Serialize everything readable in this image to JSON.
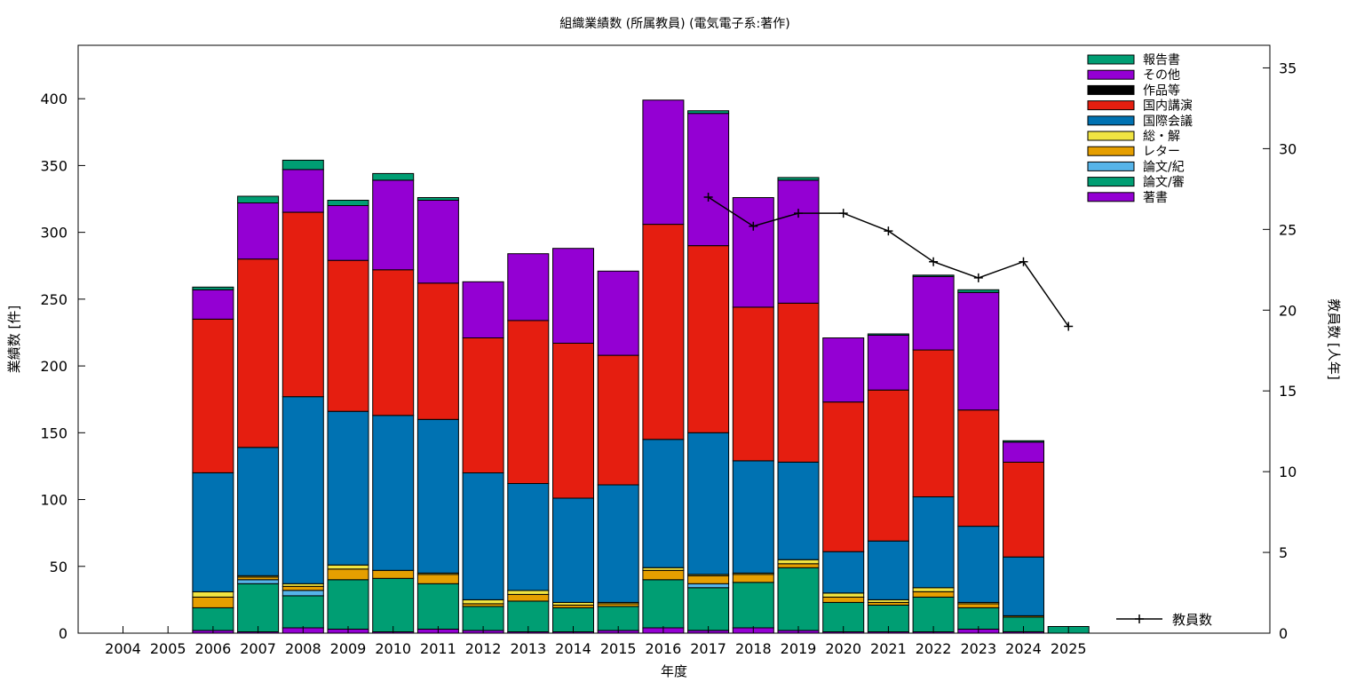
{
  "chart_data": {
    "type": "bar",
    "stacked": true,
    "title": "組織業績数 (所属教員) (電気電子系:著作)",
    "xlabel": "年度",
    "ylabel": "業績数 [件]",
    "y2label": "教員数 [人年]",
    "categories": [
      "2004",
      "2005",
      "2006",
      "2007",
      "2008",
      "2009",
      "2010",
      "2011",
      "2012",
      "2013",
      "2014",
      "2015",
      "2016",
      "2017",
      "2018",
      "2019",
      "2020",
      "2021",
      "2022",
      "2023",
      "2024",
      "2025"
    ],
    "ylim": [
      0,
      440
    ],
    "yticks": [
      0,
      50,
      100,
      150,
      200,
      250,
      300,
      350,
      400
    ],
    "y2lim": [
      0,
      36.4
    ],
    "y2ticks": [
      0,
      5,
      10,
      15,
      20,
      25,
      30,
      35
    ],
    "grid": false,
    "legend_position": "top-right",
    "series": [
      {
        "name": "著書",
        "color": "#9400d3",
        "values": [
          0,
          0,
          2,
          1,
          4,
          3,
          1,
          3,
          2,
          1,
          1,
          2,
          4,
          2,
          4,
          2,
          1,
          1,
          1,
          3,
          1,
          0
        ]
      },
      {
        "name": "論文/審",
        "color": "#009e73",
        "values": [
          0,
          0,
          17,
          36,
          24,
          37,
          40,
          34,
          18,
          23,
          18,
          18,
          36,
          32,
          34,
          47,
          22,
          20,
          26,
          16,
          11,
          5
        ]
      },
      {
        "name": "論文/紀",
        "color": "#56b4e9",
        "values": [
          0,
          0,
          0,
          3,
          4,
          0,
          0,
          0,
          0,
          0,
          0,
          0,
          0,
          3,
          0,
          0,
          0,
          0,
          0,
          0,
          0,
          0
        ]
      },
      {
        "name": "レター",
        "color": "#e69f00",
        "values": [
          0,
          0,
          8,
          2,
          3,
          8,
          6,
          7,
          2,
          5,
          2,
          2,
          7,
          6,
          6,
          3,
          4,
          2,
          4,
          3,
          1,
          0
        ]
      },
      {
        "name": "総・解",
        "color": "#f0e442",
        "values": [
          0,
          0,
          4,
          1,
          2,
          3,
          0,
          1,
          3,
          3,
          2,
          1,
          2,
          1,
          1,
          3,
          3,
          2,
          3,
          1,
          0,
          0
        ]
      },
      {
        "name": "国際会議",
        "color": "#0072b2",
        "values": [
          0,
          0,
          89,
          96,
          140,
          115,
          116,
          115,
          95,
          80,
          78,
          88,
          96,
          106,
          84,
          73,
          31,
          44,
          68,
          57,
          44,
          0
        ]
      },
      {
        "name": "国内講演",
        "color": "#e51e10",
        "values": [
          0,
          0,
          115,
          141,
          138,
          113,
          109,
          102,
          101,
          122,
          116,
          97,
          161,
          140,
          115,
          119,
          112,
          113,
          110,
          87,
          71,
          0
        ]
      },
      {
        "name": "作品等",
        "color": "#000000",
        "values": [
          0,
          0,
          0,
          0,
          0,
          0,
          0,
          0,
          0,
          0,
          0,
          0,
          0,
          0,
          0,
          0,
          0,
          0,
          0,
          0,
          0,
          0
        ]
      },
      {
        "name": "その他",
        "color": "#9400d3",
        "values": [
          0,
          0,
          22,
          42,
          32,
          41,
          67,
          62,
          42,
          50,
          71,
          63,
          93,
          99,
          82,
          92,
          48,
          41,
          55,
          88,
          15,
          0
        ]
      },
      {
        "name": "報告書",
        "color": "#009e73",
        "values": [
          0,
          0,
          2,
          5,
          7,
          4,
          5,
          2,
          0,
          0,
          0,
          0,
          0,
          2,
          0,
          2,
          0,
          1,
          1,
          2,
          1,
          0
        ]
      }
    ],
    "line_series": {
      "name": "教員数",
      "axis": "y2",
      "color": "#000000",
      "x": [
        "2017",
        "2018",
        "2019",
        "2020",
        "2021",
        "2022",
        "2023",
        "2024",
        "2025"
      ],
      "values": [
        27,
        25.2,
        26,
        26,
        24.9,
        23,
        22,
        23,
        19
      ]
    }
  }
}
